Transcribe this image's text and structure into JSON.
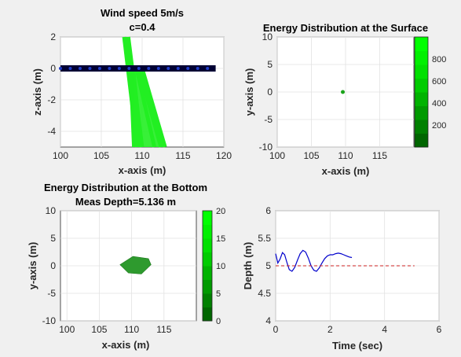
{
  "chart_data": [
    {
      "type": "line",
      "panel": "top-left",
      "title": [
        "Wind speed 5m/s",
        "c=0.4"
      ],
      "xlabel": "x-axis (m)",
      "ylabel": "z-axis (m)",
      "xlim": [
        100,
        120
      ],
      "ylim": [
        -5,
        2
      ],
      "xticks": [
        "100",
        "105",
        "110",
        "115",
        "120"
      ],
      "yticks": [
        "2",
        "0",
        "-2",
        "-4"
      ],
      "ytick_values": [
        2,
        0,
        -2,
        -4
      ],
      "grid": true,
      "surface_x_range": [
        100,
        119
      ],
      "rays": [
        {
          "x": [
            107.8,
            109.4
          ],
          "y": [
            2,
            -5
          ]
        },
        {
          "x": [
            108.3,
            110.0
          ],
          "y": [
            2,
            -5
          ]
        },
        {
          "x": [
            108.6,
            109.0
          ],
          "y": [
            0,
            -5
          ]
        },
        {
          "x": [
            108.9,
            109.9
          ],
          "y": [
            0,
            -5
          ]
        },
        {
          "x": [
            109.3,
            111.5
          ],
          "y": [
            0,
            -5
          ]
        },
        {
          "x": [
            109.6,
            112.3
          ],
          "y": [
            0,
            -5
          ]
        },
        {
          "x": [
            110.0,
            112.8
          ],
          "y": [
            0,
            -5
          ]
        }
      ],
      "colors": {
        "surface": "#000033",
        "surface_mark": "#1f3cc8",
        "rays": "#22ee22"
      }
    },
    {
      "type": "scatter",
      "panel": "top-right",
      "title": "Energy Distribution at the Surface",
      "xlabel": "x-axis (m)",
      "ylabel": "y-axis (m)",
      "xlim": [
        100,
        120
      ],
      "ylim": [
        -10,
        10
      ],
      "xticks": [
        "100",
        "105",
        "110",
        "115"
      ],
      "xtick_values": [
        100,
        105,
        110,
        115
      ],
      "yticks": [
        "10",
        "5",
        "0",
        "-5",
        "-10"
      ],
      "ytick_values": [
        10,
        5,
        0,
        -5,
        -10
      ],
      "grid": true,
      "points": [
        {
          "x": 109.6,
          "y": 0
        }
      ],
      "colorbar": {
        "min": 0,
        "max": 1000,
        "ticks": [
          "800",
          "600",
          "400",
          "200"
        ],
        "tick_values": [
          800,
          600,
          400,
          200
        ],
        "steps": 8
      },
      "colors": {
        "point": "#1aa31a"
      }
    },
    {
      "type": "heatmap",
      "panel": "bottom-left",
      "title": [
        "Energy Distribution at the Bottom",
        "Meas Depth=5.136 m"
      ],
      "xlabel": "x-axis (m)",
      "ylabel": "y-axis (m)",
      "xlim": [
        99,
        120
      ],
      "ylim": [
        -10,
        10
      ],
      "xticks": [
        "100",
        "105",
        "110",
        "115"
      ],
      "xtick_values": [
        100,
        105,
        110,
        115
      ],
      "yticks": [
        "10",
        "5",
        "0",
        "-5",
        "-10"
      ],
      "ytick_values": [
        10,
        5,
        0,
        -5,
        -10
      ],
      "grid": true,
      "patch_polygon": [
        [
          108.2,
          0.2
        ],
        [
          110.2,
          1.7
        ],
        [
          112.6,
          1.3
        ],
        [
          113.0,
          0.2
        ],
        [
          111.5,
          -1.5
        ],
        [
          109.5,
          -1.3
        ]
      ],
      "colorbar": {
        "min": 0,
        "max": 20,
        "ticks": [
          "20",
          "15",
          "10",
          "5",
          "0"
        ],
        "tick_values": [
          20,
          15,
          10,
          5,
          0
        ],
        "steps": 8
      },
      "colors": {
        "patch": "#2e9a2e"
      }
    },
    {
      "type": "line",
      "panel": "bottom-right",
      "xlabel": "Time (sec)",
      "ylabel": "Depth (m)",
      "xlim": [
        0,
        6
      ],
      "ylim": [
        4,
        6
      ],
      "xticks": [
        "0",
        "2",
        "4",
        "6"
      ],
      "xtick_values": [
        0,
        2,
        4,
        6
      ],
      "yticks": [
        "6",
        "5.5",
        "5",
        "4.5",
        "4"
      ],
      "ytick_values": [
        6,
        5.5,
        5,
        4.5,
        4
      ],
      "grid": true,
      "series": [
        {
          "x": [
            0,
            0.08,
            0.16,
            0.25,
            0.33,
            0.42,
            0.5,
            0.6,
            0.7,
            0.8,
            0.9,
            1.0,
            1.1,
            1.2,
            1.3,
            1.4,
            1.5,
            1.6,
            1.7,
            1.8,
            1.9,
            2.0,
            2.1,
            2.2,
            2.3,
            2.4,
            2.5,
            2.6,
            2.7,
            2.8
          ],
          "y": [
            5.22,
            5.05,
            5.12,
            5.24,
            5.2,
            5.05,
            4.93,
            4.9,
            4.97,
            5.1,
            5.22,
            5.28,
            5.25,
            5.14,
            5.0,
            4.92,
            4.9,
            4.96,
            5.05,
            5.13,
            5.18,
            5.2,
            5.2,
            5.22,
            5.23,
            5.22,
            5.2,
            5.18,
            5.16,
            5.15
          ]
        },
        {
          "x": [
            0,
            5.1
          ],
          "y": [
            5.0,
            5.0
          ]
        }
      ],
      "colors": {
        "series": "#0000cc",
        "reference": "#cc2222"
      }
    }
  ]
}
